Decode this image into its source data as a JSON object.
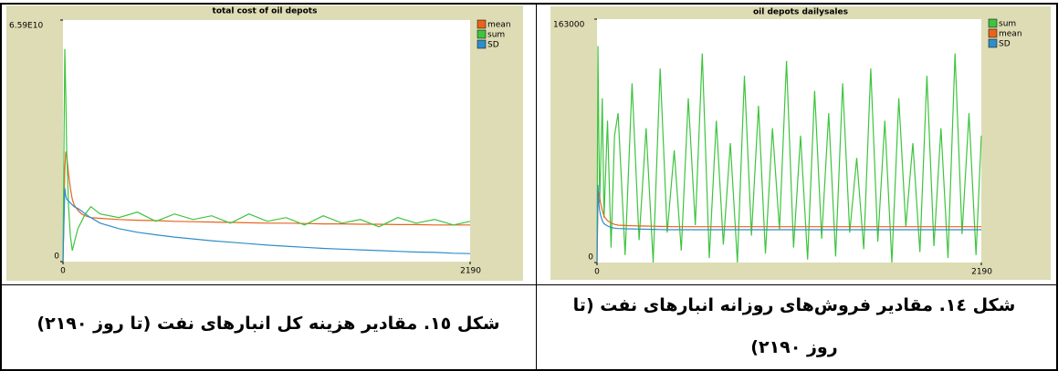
{
  "chart_data": [
    {
      "type": "line",
      "title": "total cost of oil depots",
      "x": [
        0,
        10,
        15,
        20,
        30,
        40,
        50,
        60,
        80,
        100,
        120,
        150,
        200,
        300,
        400,
        500,
        600,
        700,
        800,
        900,
        1000,
        1100,
        1200,
        1300,
        1400,
        1500,
        1600,
        1700,
        1800,
        1900,
        2000,
        2100,
        2190
      ],
      "series": [
        {
          "name": "mean",
          "color": "#e8641c",
          "values": [
            0,
            25000000000.0,
            30000000000.0,
            29000000000.0,
            24000000000.0,
            20000000000.0,
            17000000000.0,
            15500000000.0,
            14000000000.0,
            13000000000.0,
            12500000000.0,
            12000000000.0,
            11800000000.0,
            11500000000.0,
            11300000000.0,
            11200000000.0,
            11000000000.0,
            10900000000.0,
            10800000000.0,
            10700000000.0,
            10600000000.0,
            10500000000.0,
            10500000000.0,
            10400000000.0,
            10300000000.0,
            10300000000.0,
            10200000000.0,
            10200000000.0,
            10100000000.0,
            10100000000.0,
            10000000000.0,
            10000000000.0,
            10000000000.0
          ]
        },
        {
          "name": "sum",
          "color": "#3ec43e",
          "values": [
            0,
            58000000000.0,
            45000000000.0,
            30000000000.0,
            15000000000.0,
            7000000000.0,
            3000000000.0,
            5000000000.0,
            9000000000.0,
            11000000000.0,
            13000000000.0,
            15000000000.0,
            13000000000.0,
            12000000000.0,
            13500000000.0,
            11000000000.0,
            13000000000.0,
            11500000000.0,
            12500000000.0,
            10500000000.0,
            13000000000.0,
            11000000000.0,
            12000000000.0,
            10000000000.0,
            12500000000.0,
            10500000000.0,
            11500000000.0,
            9500000000.0,
            12000000000.0,
            10500000000.0,
            11500000000.0,
            10000000000.0,
            11000000000.0
          ]
        },
        {
          "name": "SD",
          "color": "#2f8ec8",
          "values": [
            0,
            20000000000.0,
            18000000000.0,
            17000000000.0,
            16500000000.0,
            16000000000.0,
            15500000000.0,
            15000000000.0,
            14500000000.0,
            13800000000.0,
            13000000000.0,
            12000000000.0,
            10500000000.0,
            9000000000.0,
            8000000000.0,
            7300000000.0,
            6700000000.0,
            6200000000.0,
            5700000000.0,
            5300000000.0,
            4900000000.0,
            4500000000.0,
            4200000000.0,
            3900000000.0,
            3600000000.0,
            3400000000.0,
            3200000000.0,
            3000000000.0,
            2800000000.0,
            2600000000.0,
            2500000000.0,
            2300000000.0,
            2200000000.0
          ]
        }
      ],
      "xlim": [
        0,
        2190
      ],
      "xticks": [
        0,
        2190
      ],
      "ylim": [
        0,
        65900000000
      ],
      "yticks": [
        0,
        {
          "value": 65900000000,
          "label": "6.59E10"
        }
      ],
      "legend": "top-right"
    },
    {
      "type": "line",
      "title": "oil depots dailysales",
      "x": [
        0,
        5,
        10,
        15,
        20,
        30,
        40,
        60,
        80,
        100,
        120,
        160,
        200,
        240,
        280,
        320,
        360,
        400,
        440,
        480,
        520,
        560,
        600,
        640,
        680,
        720,
        760,
        800,
        840,
        880,
        920,
        960,
        1000,
        1040,
        1080,
        1120,
        1160,
        1200,
        1240,
        1280,
        1320,
        1360,
        1400,
        1440,
        1480,
        1520,
        1560,
        1600,
        1640,
        1680,
        1720,
        1760,
        1800,
        1840,
        1880,
        1920,
        1960,
        2000,
        2040,
        2080,
        2120,
        2160,
        2190
      ],
      "series": [
        {
          "name": "sum",
          "color": "#3ec43e",
          "values": [
            0,
            145000,
            90000,
            40000,
            60000,
            110000,
            30000,
            95000,
            10000,
            85000,
            100000,
            5000,
            120000,
            15000,
            90000,
            0,
            130000,
            20000,
            75000,
            8000,
            110000,
            25000,
            140000,
            3000,
            95000,
            12000,
            80000,
            0,
            125000,
            18000,
            105000,
            6000,
            90000,
            22000,
            135000,
            10000,
            85000,
            2000,
            115000,
            16000,
            100000,
            4000,
            120000,
            20000,
            70000,
            9000,
            130000,
            14000,
            95000,
            0,
            110000,
            24000,
            80000,
            7000,
            125000,
            11000,
            90000,
            3000,
            140000,
            19000,
            100000,
            5000,
            85000
          ]
        },
        {
          "name": "mean",
          "color": "#e8641c",
          "values": [
            0,
            40000,
            47000,
            44000,
            40000,
            35000,
            31000,
            28000,
            26500,
            25500,
            25000,
            24800,
            24600,
            24500,
            24400,
            24300,
            24200,
            24100,
            24000,
            24000,
            24000,
            24000,
            24000,
            24000,
            24000,
            24000,
            24000,
            24000,
            24000,
            24000,
            24000,
            24000,
            24000,
            24000,
            24000,
            24000,
            24000,
            24000,
            24000,
            24000,
            24000,
            24000,
            24000,
            24000,
            24000,
            24000,
            24000,
            24000,
            24000,
            24000,
            24000,
            24000,
            24000,
            24000,
            24000,
            24000,
            24000,
            24000,
            24000,
            24000,
            24000,
            24000,
            24000
          ]
        },
        {
          "name": "SD",
          "color": "#2f8ec8",
          "values": [
            0,
            52000,
            40000,
            35000,
            32000,
            28000,
            26000,
            24500,
            23500,
            23000,
            22800,
            22600,
            22500,
            22400,
            22300,
            22200,
            22100,
            22000,
            22000,
            22000,
            22000,
            22000,
            22000,
            22000,
            22000,
            22000,
            22000,
            22000,
            22000,
            22000,
            22000,
            22000,
            22000,
            22000,
            22000,
            22000,
            22000,
            22000,
            22000,
            22000,
            22000,
            22000,
            22000,
            22000,
            22000,
            22000,
            22000,
            22000,
            22000,
            22000,
            22000,
            22000,
            22000,
            22000,
            22000,
            22000,
            22000,
            22000,
            22000,
            22000,
            22000,
            22000,
            22000
          ]
        }
      ],
      "xlim": [
        0,
        2190
      ],
      "xticks": [
        0,
        2190
      ],
      "ylim": [
        0,
        163000
      ],
      "yticks": [
        0,
        163000
      ],
      "legend": "top-right"
    }
  ],
  "captions": [
    "شکل ١٥. مقادیر هزینه کل انبارهای نفت (تا روز ٢١٩٠)",
    "شکل ١٤. مقادیر فروش‌های روزانه انبارهای نفت (تا روز ٢١٩٠)"
  ]
}
